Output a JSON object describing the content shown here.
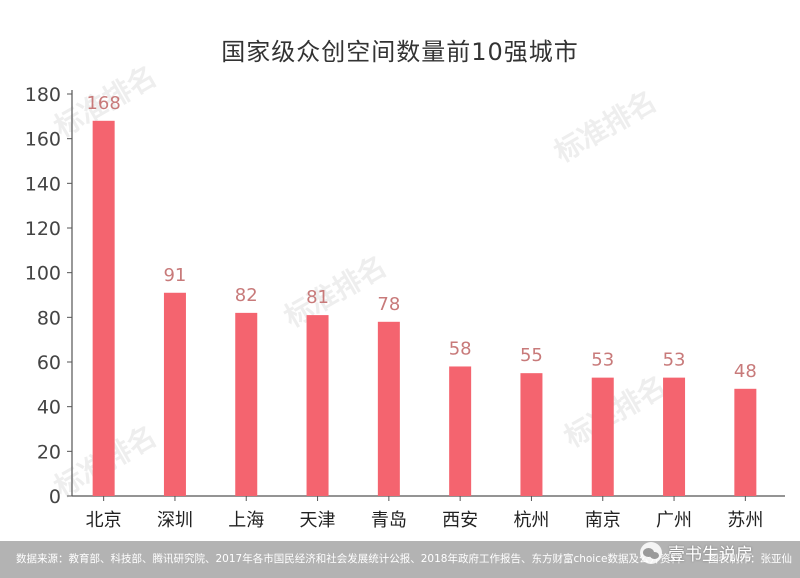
{
  "chart_data": {
    "type": "bar",
    "title": "国家级众创空间数量前10强城市",
    "categories": [
      "北京",
      "深圳",
      "上海",
      "天津",
      "青岛",
      "西安",
      "杭州",
      "南京",
      "广州",
      "苏州"
    ],
    "values": [
      168,
      91,
      82,
      81,
      78,
      58,
      55,
      53,
      53,
      48
    ],
    "yticks": [
      0,
      20,
      40,
      60,
      80,
      100,
      120,
      140,
      160,
      180
    ],
    "ylim": [
      0,
      180
    ],
    "xlabel": "",
    "ylabel": "",
    "bar_color": "#f4646f",
    "label_color": "#c87a7a",
    "grid": false,
    "legend": "none"
  },
  "footer": {
    "source": "数据来源：教育部、科技部、腾讯研究院、2017年各市国民经济和社会发展统计公报、2018年政府工作报告、东方财富choice数据及公开资料",
    "maker": "图表制作：张亚仙",
    "brand": "壹书生说房"
  },
  "watermark": {
    "text": "标准排名"
  }
}
